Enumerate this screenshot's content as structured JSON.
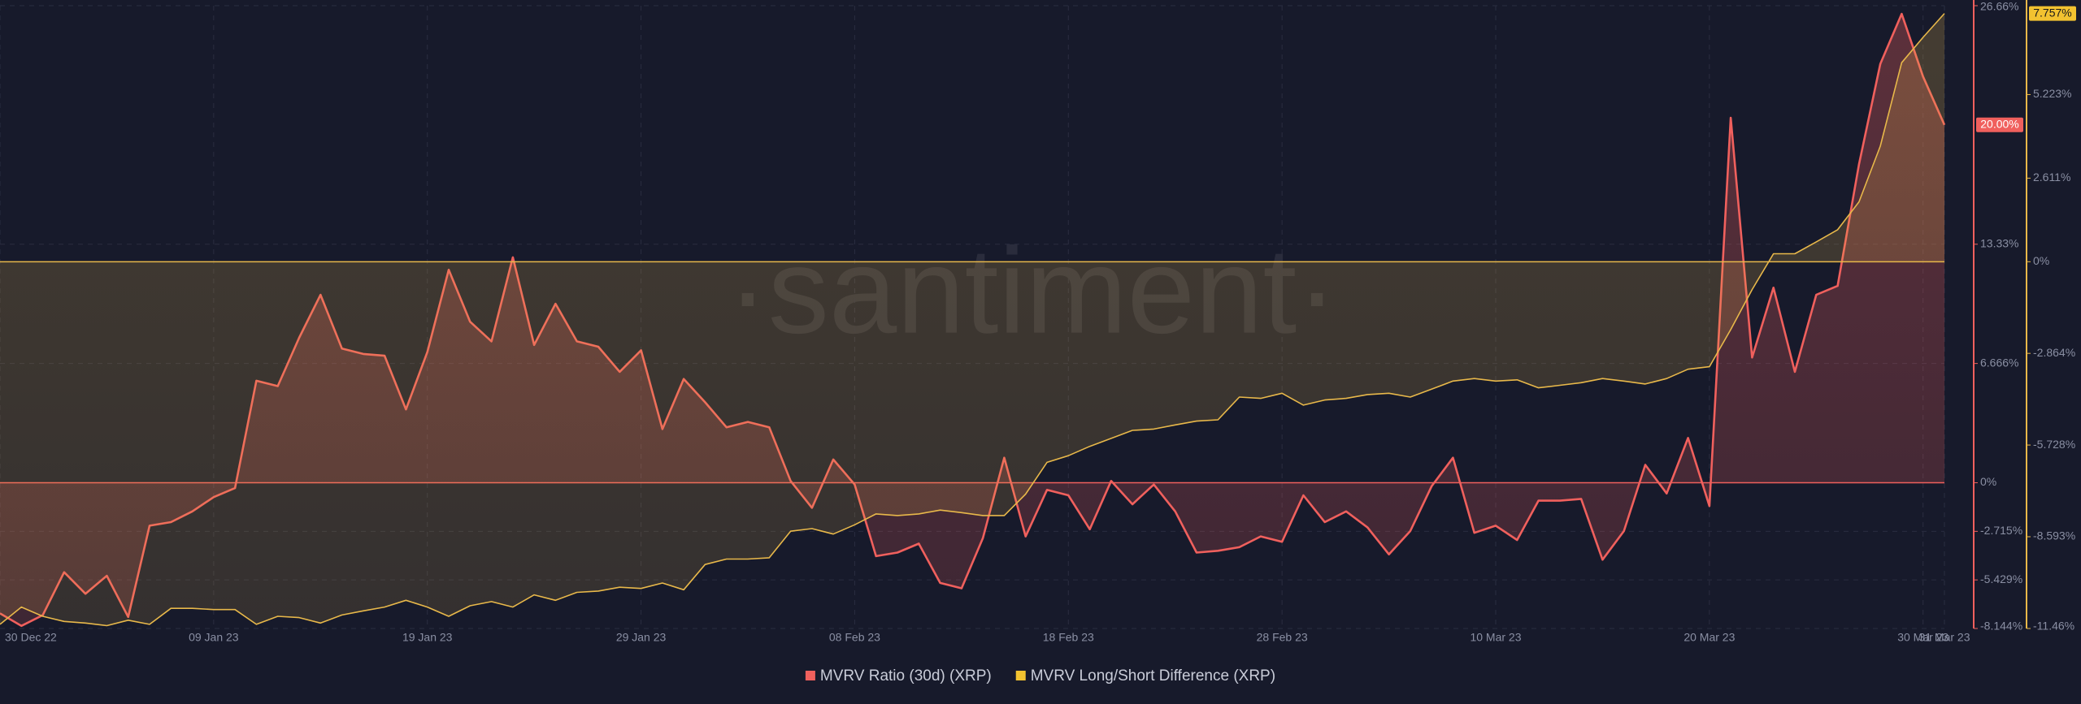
{
  "chart_data": {
    "type": "line",
    "watermark": "·santiment·",
    "x": [
      "2022-12-30",
      "2022-12-31",
      "2023-01-01",
      "2023-01-02",
      "2023-01-03",
      "2023-01-04",
      "2023-01-05",
      "2023-01-06",
      "2023-01-07",
      "2023-01-08",
      "2023-01-09",
      "2023-01-10",
      "2023-01-11",
      "2023-01-12",
      "2023-01-13",
      "2023-01-14",
      "2023-01-15",
      "2023-01-16",
      "2023-01-17",
      "2023-01-18",
      "2023-01-19",
      "2023-01-20",
      "2023-01-21",
      "2023-01-22",
      "2023-01-23",
      "2023-01-24",
      "2023-01-25",
      "2023-01-26",
      "2023-01-27",
      "2023-01-28",
      "2023-01-29",
      "2023-01-30",
      "2023-01-31",
      "2023-02-01",
      "2023-02-02",
      "2023-02-03",
      "2023-02-04",
      "2023-02-05",
      "2023-02-06",
      "2023-02-07",
      "2023-02-08",
      "2023-02-09",
      "2023-02-10",
      "2023-02-11",
      "2023-02-12",
      "2023-02-13",
      "2023-02-14",
      "2023-02-15",
      "2023-02-16",
      "2023-02-17",
      "2023-02-18",
      "2023-02-19",
      "2023-02-20",
      "2023-02-21",
      "2023-02-22",
      "2023-02-23",
      "2023-02-24",
      "2023-02-25",
      "2023-02-26",
      "2023-02-27",
      "2023-02-28",
      "2023-03-01",
      "2023-03-02",
      "2023-03-03",
      "2023-03-04",
      "2023-03-05",
      "2023-03-06",
      "2023-03-07",
      "2023-03-08",
      "2023-03-09",
      "2023-03-10",
      "2023-03-11",
      "2023-03-12",
      "2023-03-13",
      "2023-03-14",
      "2023-03-15",
      "2023-03-16",
      "2023-03-17",
      "2023-03-18",
      "2023-03-19",
      "2023-03-20",
      "2023-03-21",
      "2023-03-22",
      "2023-03-23",
      "2023-03-24",
      "2023-03-25",
      "2023-03-26",
      "2023-03-27",
      "2023-03-28",
      "2023-03-29",
      "2023-03-30",
      "2023-03-31"
    ],
    "xlim": [
      "2022-12-30",
      "2023-03-31"
    ],
    "xticks": [
      {
        "value": "2022-12-30",
        "label": "30 Dec 22"
      },
      {
        "value": "2023-01-09",
        "label": "09 Jan 23"
      },
      {
        "value": "2023-01-19",
        "label": "19 Jan 23"
      },
      {
        "value": "2023-01-29",
        "label": "29 Jan 23"
      },
      {
        "value": "2023-02-08",
        "label": "08 Feb 23"
      },
      {
        "value": "2023-02-18",
        "label": "18 Feb 23"
      },
      {
        "value": "2023-02-28",
        "label": "28 Feb 23"
      },
      {
        "value": "2023-03-10",
        "label": "10 Mar 23"
      },
      {
        "value": "2023-03-20",
        "label": "20 Mar 23"
      },
      {
        "value": "2023-03-30",
        "label": "30 Mar 23"
      },
      {
        "value": "2023-03-31",
        "label": "31 Mar 23"
      }
    ],
    "ylim": [
      -8.144,
      26.66
    ],
    "yticks": [
      {
        "value": -8.144,
        "label": "-8.144%"
      },
      {
        "value": -5.429,
        "label": "-5.429%"
      },
      {
        "value": -2.715,
        "label": "-2.715%"
      },
      {
        "value": 0,
        "label": "0%"
      },
      {
        "value": 6.666,
        "label": "6.666%"
      },
      {
        "value": 13.33,
        "label": "13.33%"
      },
      {
        "value": 26.66,
        "label": "26.66%"
      }
    ],
    "y2lim": [
      -11.46,
      8.0
    ],
    "y2ticks": [
      {
        "value": -11.46,
        "label": "-11.46%"
      },
      {
        "value": -8.593,
        "label": "-8.593%"
      },
      {
        "value": -5.728,
        "label": "-5.728%"
      },
      {
        "value": -2.864,
        "label": "-2.864%"
      },
      {
        "value": 0,
        "label": "0%"
      },
      {
        "value": 2.611,
        "label": "2.611%"
      },
      {
        "value": 5.223,
        "label": "5.223%"
      }
    ],
    "grid": true,
    "current_labels": [
      {
        "value": 20.0,
        "label": "20.00%",
        "axis": "y"
      },
      {
        "value": 7.757,
        "label": "7.757%",
        "axis": "y2"
      }
    ],
    "series": [
      {
        "name": "MVRV Ratio (30d) (XRP)",
        "color": "#f0605d",
        "axis": "y",
        "values": [
          -7.3,
          -8.0,
          -7.4,
          -5.0,
          -6.2,
          -5.2,
          -7.5,
          -2.4,
          -2.2,
          -1.6,
          -0.8,
          -0.3,
          5.7,
          5.4,
          8.1,
          10.5,
          7.5,
          7.2,
          7.1,
          4.1,
          7.3,
          11.9,
          9.0,
          7.9,
          12.6,
          7.7,
          10.0,
          7.9,
          7.6,
          6.2,
          7.4,
          3.0,
          5.8,
          4.5,
          3.1,
          3.4,
          3.1,
          0.1,
          -1.4,
          1.3,
          -0.1,
          -4.1,
          -3.9,
          -3.4,
          -5.6,
          -5.9,
          -3.1,
          1.4,
          -3.0,
          -0.4,
          -0.7,
          -2.6,
          0.1,
          -1.2,
          -0.1,
          -1.6,
          -3.9,
          -3.8,
          -3.6,
          -3.0,
          -3.3,
          -0.7,
          -2.2,
          -1.6,
          -2.5,
          -4.0,
          -2.7,
          -0.2,
          1.4,
          -2.8,
          -2.4,
          -3.2,
          -1.0,
          -1.0,
          -0.9,
          -4.3,
          -2.7,
          1.0,
          -0.6,
          2.5,
          -1.3,
          20.4,
          7.0,
          10.9,
          6.2,
          10.5,
          11.0,
          17.8,
          23.4,
          26.2,
          22.7,
          20.0
        ]
      },
      {
        "name": "MVRV Long/Short Difference (XRP)",
        "color": "#e8b84a",
        "axis": "y2",
        "values": [
          -11.33,
          -10.79,
          -11.08,
          -11.24,
          -11.29,
          -11.37,
          -11.2,
          -11.33,
          -10.83,
          -10.83,
          -10.87,
          -10.87,
          -11.33,
          -11.08,
          -11.12,
          -11.29,
          -11.04,
          -10.91,
          -10.79,
          -10.58,
          -10.79,
          -11.08,
          -10.75,
          -10.62,
          -10.79,
          -10.41,
          -10.58,
          -10.33,
          -10.29,
          -10.17,
          -10.21,
          -10.04,
          -10.25,
          -9.46,
          -9.29,
          -9.29,
          -9.25,
          -8.42,
          -8.34,
          -8.51,
          -8.22,
          -7.88,
          -7.93,
          -7.88,
          -7.76,
          -7.84,
          -7.93,
          -7.93,
          -7.26,
          -6.27,
          -6.06,
          -5.77,
          -5.52,
          -5.27,
          -5.23,
          -5.1,
          -4.98,
          -4.94,
          -4.23,
          -4.27,
          -4.11,
          -4.48,
          -4.32,
          -4.27,
          -4.15,
          -4.11,
          -4.23,
          -3.98,
          -3.73,
          -3.65,
          -3.73,
          -3.69,
          -3.94,
          -3.86,
          -3.78,
          -3.65,
          -3.73,
          -3.82,
          -3.65,
          -3.36,
          -3.28,
          -2.12,
          -0.87,
          0.25,
          0.25,
          0.62,
          1.0,
          1.87,
          3.61,
          6.22,
          7.01,
          7.757
        ]
      }
    ]
  }
}
